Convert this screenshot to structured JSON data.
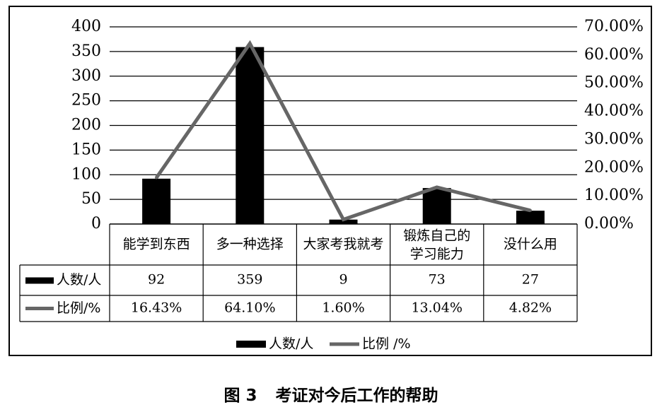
{
  "chart_data": {
    "type": "bar",
    "categories": [
      "能学到东西",
      "多一种选择",
      "大家考我就考",
      "锻炼自己的学习能力",
      "没什么用"
    ],
    "category_lines": [
      [
        "能学到东西"
      ],
      [
        "多一种选择"
      ],
      [
        "大家考我就考"
      ],
      [
        "锻炼自己的",
        "学习能力"
      ],
      [
        "没什么用"
      ]
    ],
    "series": [
      {
        "name": "人数/人",
        "axis": "left",
        "kind": "bar",
        "color": "#000000",
        "values": [
          92,
          359,
          9,
          73,
          27
        ],
        "labels": [
          "92",
          "359",
          "9",
          "73",
          "27"
        ]
      },
      {
        "name": "比例/%",
        "axis": "right",
        "kind": "line",
        "color": "#666666",
        "values": [
          16.43,
          64.1,
          1.6,
          13.04,
          4.82
        ],
        "labels": [
          "16.43%",
          "64.10%",
          "1.60%",
          "13.04%",
          "4.82%"
        ]
      }
    ],
    "left_axis": {
      "ylim": [
        0,
        400
      ],
      "ticks": [
        "0",
        "50",
        "100",
        "150",
        "200",
        "250",
        "300",
        "350",
        "400"
      ]
    },
    "right_axis": {
      "ylim": [
        0,
        70
      ],
      "ticks": [
        "0.00%",
        "10.00%",
        "20.00%",
        "30.00%",
        "40.00%",
        "50.00%",
        "60.00%",
        "70.00%"
      ]
    },
    "grid": true,
    "data_table": true,
    "legend": {
      "placement": "bottom",
      "entries": [
        "人数/人",
        "比例 /%"
      ]
    }
  },
  "caption": {
    "figure_number": "图 3",
    "text": "考证对今后工作的帮助"
  }
}
